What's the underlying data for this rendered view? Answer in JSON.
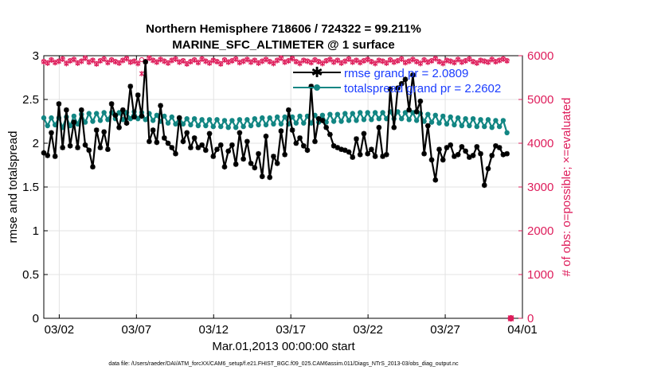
{
  "colors": {
    "rmse": "#000000",
    "spread": "#128683",
    "obs": "#de1d5b",
    "legend_text": "#1a3cff",
    "grid": "#e3e3e3"
  },
  "chart_data": {
    "type": "line",
    "title": "Northern Hemisphere 718606 / 724322 = 99.211%",
    "subtitle": "MARINE_SFC_ALTIMETER @ 1 surface",
    "xlabel": "Mar.01,2013 00:00:00 start",
    "ylabel": "rmse and totalspread",
    "y2label": "# of obs: o=possible; ×=evaluated",
    "xlim": [
      0.75,
      31.25
    ],
    "ylim": [
      0,
      3
    ],
    "y2lim": [
      0,
      6000
    ],
    "x_ticks": [
      2,
      7,
      12,
      17,
      22,
      27,
      32
    ],
    "x_tick_labels": [
      "03/02",
      "03/07",
      "03/12",
      "03/17",
      "03/22",
      "03/27",
      "04/01"
    ],
    "y_ticks": [
      0,
      0.5,
      1,
      1.5,
      2,
      2.5,
      3
    ],
    "y_tick_labels": [
      "0",
      "0.5",
      "1",
      "1.5",
      "2",
      "2.5",
      "3"
    ],
    "y2_ticks": [
      0,
      1000,
      2000,
      3000,
      4000,
      5000,
      6000
    ],
    "y2_tick_labels": [
      "0",
      "1000",
      "2000",
      "3000",
      "4000",
      "5000",
      "6000"
    ],
    "grid": true,
    "legend_position": "top-right",
    "series": [
      {
        "name": "rmse grand pr = 2.0809",
        "axis": "left",
        "marker": "star",
        "values": [
          1.89,
          1.86,
          2.12,
          1.85,
          2.45,
          1.95,
          2.38,
          1.97,
          2.24,
          1.95,
          2.38,
          1.98,
          1.92,
          1.73,
          2.15,
          1.95,
          2.13,
          1.93,
          2.45,
          2.32,
          2.18,
          2.38,
          2.23,
          2.65,
          2.3,
          2.55,
          2.31,
          2.93,
          2.02,
          2.15,
          2.01,
          2.43,
          2.06,
          2.0,
          1.95,
          1.88,
          2.29,
          2.02,
          2.12,
          1.95,
          2.06,
          1.95,
          1.98,
          1.92,
          2.11,
          1.85,
          1.93,
          1.98,
          1.73,
          1.91,
          1.98,
          1.76,
          2.12,
          1.82,
          2.02,
          1.77,
          1.72,
          1.88,
          1.62,
          2.08,
          1.61,
          1.85,
          1.77,
          2.14,
          1.87,
          2.38,
          2.15,
          2.0,
          2.06,
          1.97,
          1.92,
          2.65,
          2.02,
          2.28,
          2.26,
          2.18,
          2.1,
          1.97,
          1.95,
          1.93,
          1.92,
          1.9,
          1.84,
          2.05,
          1.87,
          2.11,
          1.88,
          1.93,
          1.85,
          2.18,
          1.85,
          1.87,
          2.62,
          2.18,
          2.63,
          2.68,
          2.73,
          2.38,
          2.78,
          2.36,
          2.48,
          1.88,
          2.2,
          1.81,
          1.58,
          1.93,
          1.81,
          1.95,
          1.98,
          1.85,
          1.87,
          1.96,
          1.91,
          1.84,
          1.86,
          1.96,
          1.88,
          1.52,
          1.71,
          1.86,
          1.97,
          1.95,
          1.87,
          1.88
        ]
      },
      {
        "name": "totalspread grand pr = 2.2602",
        "axis": "left",
        "marker": "circle",
        "values": [
          2.29,
          2.2,
          2.29,
          2.21,
          2.29,
          2.18,
          2.3,
          2.2,
          2.31,
          2.22,
          2.33,
          2.24,
          2.34,
          2.25,
          2.34,
          2.26,
          2.35,
          2.27,
          2.35,
          2.28,
          2.35,
          2.27,
          2.35,
          2.28,
          2.36,
          2.28,
          2.35,
          2.27,
          2.34,
          2.26,
          2.32,
          2.25,
          2.31,
          2.23,
          2.3,
          2.22,
          2.29,
          2.22,
          2.28,
          2.21,
          2.28,
          2.2,
          2.27,
          2.2,
          2.27,
          2.19,
          2.27,
          2.19,
          2.26,
          2.18,
          2.26,
          2.18,
          2.27,
          2.19,
          2.27,
          2.2,
          2.28,
          2.21,
          2.29,
          2.21,
          2.29,
          2.22,
          2.3,
          2.22,
          2.3,
          2.22,
          2.3,
          2.23,
          2.31,
          2.23,
          2.31,
          2.23,
          2.32,
          2.24,
          2.32,
          2.24,
          2.33,
          2.25,
          2.33,
          2.25,
          2.34,
          2.26,
          2.34,
          2.26,
          2.35,
          2.27,
          2.35,
          2.27,
          2.35,
          2.28,
          2.35,
          2.28,
          2.36,
          2.28,
          2.36,
          2.28,
          2.35,
          2.27,
          2.35,
          2.26,
          2.34,
          2.25,
          2.33,
          2.24,
          2.32,
          2.23,
          2.31,
          2.22,
          2.3,
          2.21,
          2.29,
          2.2,
          2.28,
          2.2,
          2.28,
          2.19,
          2.27,
          2.19,
          2.27,
          2.18,
          2.26,
          2.19,
          2.26,
          2.12
        ]
      },
      {
        "name": "possible",
        "axis": "right",
        "marker": "o",
        "values": [
          5870,
          5840,
          5910,
          5850,
          5880,
          5930,
          5830,
          5890,
          5920,
          5840,
          5880,
          5950,
          5860,
          5900,
          5820,
          5890,
          5930,
          5850,
          5910,
          5870,
          5840,
          5900,
          5940,
          5860,
          5880,
          5830,
          5910,
          5870,
          5950,
          5900,
          5860,
          5920,
          5880,
          5840,
          5900,
          5930,
          5860,
          5890,
          5820,
          5870,
          5910,
          5850,
          5930,
          5880,
          5840,
          5900,
          5870,
          5820,
          5910,
          5860,
          5890,
          5930,
          5850,
          5880,
          5920,
          5860,
          5900,
          5840,
          5880,
          5920,
          5870,
          5830,
          5900,
          5950,
          5860,
          5890,
          5940,
          5870,
          5830,
          5900,
          5880,
          5850,
          5910,
          5870,
          5830,
          5890,
          5920,
          5860,
          5900,
          5840,
          5880,
          5930,
          5860,
          5900,
          5850,
          5890,
          5920,
          5870,
          5830,
          5900,
          5880,
          5840,
          5910,
          5860,
          5890,
          5930,
          5850,
          5880,
          5920,
          5870,
          5830,
          5910,
          5860,
          5890,
          5940,
          5870,
          5830,
          5900,
          5880,
          5850,
          5920,
          5860,
          5890,
          5930,
          5870,
          5840,
          5900,
          5880,
          5860,
          5920,
          5870,
          5900,
          5930,
          5890
        ]
      },
      {
        "name": "evaluated",
        "axis": "right",
        "marker": "x",
        "values": [
          5860,
          5830,
          5900,
          5840,
          5870,
          5920,
          5820,
          5880,
          5910,
          5830,
          5870,
          5940,
          5850,
          5890,
          5810,
          5880,
          5920,
          5840,
          5900,
          5860,
          5830,
          5890,
          5930,
          5850,
          5870,
          5820,
          5590,
          5860,
          5940,
          5890,
          5850,
          5910,
          5870,
          5830,
          5890,
          5920,
          5850,
          5880,
          5810,
          5860,
          5900,
          5840,
          5920,
          5870,
          5830,
          5890,
          5860,
          5810,
          5900,
          5850,
          5880,
          5920,
          5840,
          5870,
          5910,
          5850,
          5890,
          5830,
          5870,
          5910,
          5860,
          5820,
          5890,
          5940,
          5850,
          5880,
          5930,
          5860,
          5820,
          5890,
          5870,
          5840,
          5900,
          5860,
          5820,
          5880,
          5910,
          5850,
          5890,
          5830,
          5870,
          5920,
          5850,
          5890,
          5840,
          5880,
          5910,
          5860,
          5820,
          5890,
          5870,
          5830,
          5900,
          5850,
          5880,
          5920,
          5840,
          5870,
          5910,
          5860,
          5820,
          5900,
          5850,
          5880,
          5930,
          5860,
          5820,
          5890,
          5870,
          5840,
          5910,
          5850,
          5880,
          5920,
          5860,
          5830,
          5890,
          5870,
          5850,
          5910,
          5860,
          5890,
          5920,
          5880
        ]
      }
    ],
    "extra_points": [
      {
        "name": "possible",
        "x": 31.25,
        "y2": 0
      },
      {
        "name": "evaluated",
        "x": 31.25,
        "y2": 0
      }
    ]
  },
  "footer": "data file: /Users/raeder/DAI/ATM_forcXX/CAM6_setup/f.e21.FHIST_BGC.f09_025.CAM6assim.011/Diags_NTrS_2013-03/obs_diag_output.nc"
}
